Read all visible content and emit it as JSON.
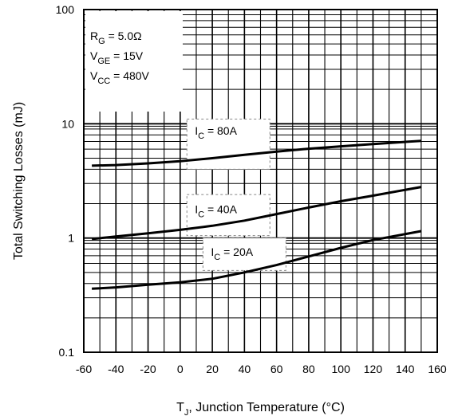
{
  "chart_data": {
    "type": "line",
    "title": "",
    "xlabel": {
      "main": "T",
      "sub": "J",
      "rest": ", Junction Temperature (°C)"
    },
    "ylabel": "Total Switching Losses (mJ)",
    "xlim": [
      -60,
      160
    ],
    "ylim": [
      0.1,
      100
    ],
    "yscale": "log",
    "grid": true,
    "x_ticks": [
      -60,
      -40,
      -20,
      0,
      20,
      40,
      60,
      80,
      100,
      120,
      140,
      160
    ],
    "x_tick_labels": [
      "-60",
      "-40",
      "-20",
      "0",
      "20",
      "40",
      "60",
      "80",
      "100",
      "120",
      "140",
      "160"
    ],
    "y_ticks": [
      0.1,
      1,
      10,
      100
    ],
    "y_tick_labels": [
      "0.1",
      "1",
      "10",
      "100"
    ],
    "conditions": [
      {
        "main": "R",
        "sub": "G",
        "rest": " = 5.0Ω"
      },
      {
        "main": "V",
        "sub": "GE",
        "rest": " = 15V"
      },
      {
        "main": "V",
        "sub": "CC",
        "rest": " = 480V"
      }
    ],
    "series": [
      {
        "label": {
          "main": "I",
          "sub": "C",
          "rest": " = 80A"
        },
        "x": [
          -55,
          -40,
          -20,
          0,
          20,
          40,
          60,
          80,
          100,
          120,
          150
        ],
        "y": [
          4.3,
          4.35,
          4.5,
          4.7,
          5.0,
          5.35,
          5.7,
          6.05,
          6.35,
          6.65,
          7.1
        ]
      },
      {
        "label": {
          "main": "I",
          "sub": "C",
          "rest": " = 40A"
        },
        "x": [
          -55,
          -40,
          -20,
          0,
          20,
          40,
          60,
          80,
          100,
          120,
          150
        ],
        "y": [
          0.98,
          1.03,
          1.1,
          1.18,
          1.28,
          1.42,
          1.62,
          1.85,
          2.1,
          2.35,
          2.8
        ]
      },
      {
        "label": {
          "main": "I",
          "sub": "C",
          "rest": " = 20A"
        },
        "x": [
          -55,
          -40,
          -20,
          0,
          20,
          40,
          60,
          80,
          100,
          120,
          150
        ],
        "y": [
          0.36,
          0.37,
          0.39,
          0.41,
          0.44,
          0.5,
          0.58,
          0.69,
          0.82,
          0.96,
          1.15
        ]
      }
    ]
  }
}
